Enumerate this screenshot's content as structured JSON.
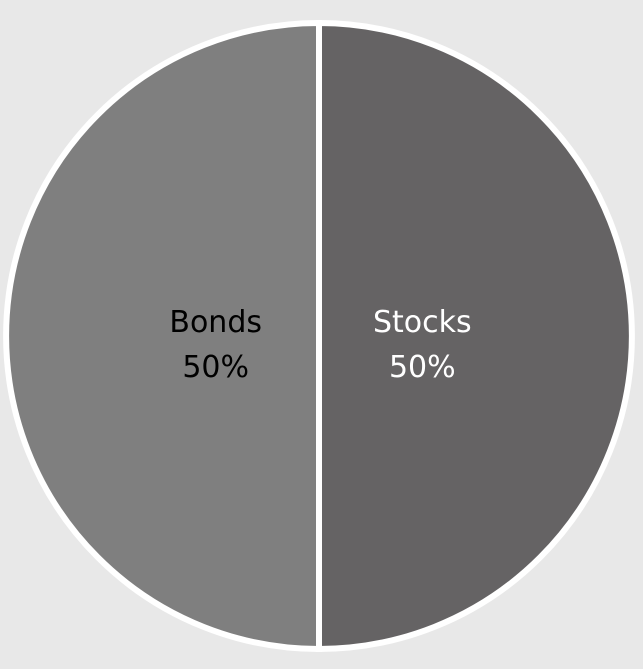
{
  "chart_data": {
    "type": "pie",
    "title": "",
    "slices": [
      {
        "label": "Stocks",
        "value": 50,
        "percent_label": "50%",
        "color": "#656364",
        "text_color": "#ffffff"
      },
      {
        "label": "Bonds",
        "value": 50,
        "percent_label": "50%",
        "color": "#7f7f7f",
        "text_color": "#000000"
      }
    ],
    "start_angle_deg": 0,
    "direction": "clockwise",
    "separator_color": "#ffffff",
    "background": "#e8e8e8",
    "legend": "none"
  }
}
